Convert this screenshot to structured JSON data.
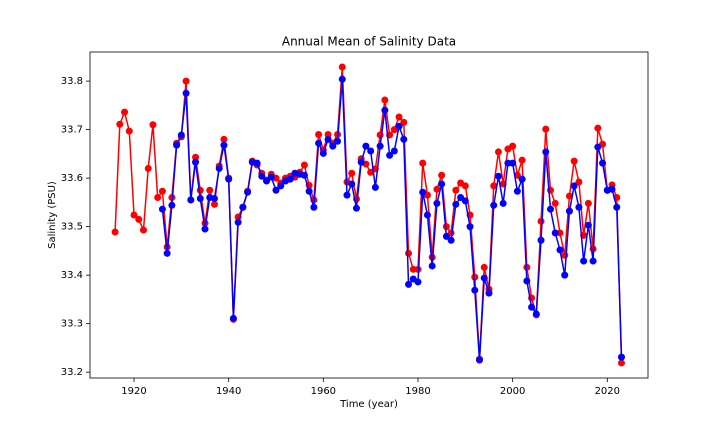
{
  "chart_data": {
    "type": "line",
    "title": "Annual Mean of Salinity Data",
    "x_label": "Time (year)",
    "y_label": "Salinity (PSU)",
    "x": [
      1916,
      1917,
      1918,
      1919,
      1920,
      1921,
      1922,
      1923,
      1924,
      1925,
      1926,
      1927,
      1928,
      1929,
      1930,
      1931,
      1932,
      1933,
      1934,
      1935,
      1936,
      1937,
      1938,
      1939,
      1940,
      1941,
      1942,
      1943,
      1944,
      1945,
      1946,
      1947,
      1948,
      1949,
      1950,
      1951,
      1952,
      1953,
      1954,
      1955,
      1956,
      1957,
      1958,
      1959,
      1960,
      1961,
      1962,
      1963,
      1964,
      1965,
      1966,
      1967,
      1968,
      1969,
      1970,
      1971,
      1972,
      1973,
      1974,
      1975,
      1976,
      1977,
      1978,
      1979,
      1980,
      1981,
      1982,
      1983,
      1984,
      1985,
      1986,
      1987,
      1988,
      1989,
      1990,
      1991,
      1992,
      1993,
      1994,
      1995,
      1996,
      1997,
      1998,
      1999,
      2000,
      2001,
      2002,
      2003,
      2004,
      2005,
      2006,
      2007,
      2008,
      2009,
      2010,
      2011,
      2012,
      2013,
      2014,
      2015,
      2016,
      2017,
      2018,
      2019,
      2020,
      2021,
      2022,
      2023
    ],
    "series": [
      {
        "color": "red",
        "values": [
          33.489,
          33.711,
          33.736,
          33.697,
          33.524,
          33.515,
          33.493,
          33.62,
          33.71,
          33.56,
          33.573,
          33.458,
          33.56,
          33.672,
          33.685,
          33.8,
          33.555,
          33.643,
          33.575,
          33.507,
          33.575,
          33.546,
          33.625,
          33.68,
          33.6,
          33.309,
          33.52,
          33.54,
          33.573,
          33.635,
          33.627,
          33.61,
          33.596,
          33.608,
          33.6,
          33.59,
          33.6,
          33.604,
          33.602,
          33.612,
          33.627,
          33.585,
          33.555,
          33.69,
          33.658,
          33.69,
          33.672,
          33.69,
          33.829,
          33.592,
          33.61,
          33.557,
          33.64,
          33.629,
          33.612,
          33.619,
          33.689,
          33.761,
          33.689,
          33.7,
          33.726,
          33.715,
          33.445,
          33.412,
          33.412,
          33.631,
          33.565,
          33.437,
          33.577,
          33.606,
          33.5,
          33.487,
          33.575,
          33.59,
          33.584,
          33.524,
          33.396,
          33.227,
          33.416,
          33.371,
          33.584,
          33.654,
          33.588,
          33.66,
          33.666,
          33.606,
          33.637,
          33.416,
          33.353,
          33.318,
          33.511,
          33.701,
          33.575,
          33.548,
          33.487,
          33.441,
          33.563,
          33.635,
          33.592,
          33.482,
          33.548,
          33.454,
          33.703,
          33.67,
          33.575,
          33.586,
          33.56,
          33.219
        ]
      },
      {
        "color": "blue",
        "values": [
          null,
          null,
          null,
          null,
          null,
          null,
          null,
          null,
          null,
          null,
          33.536,
          33.445,
          33.544,
          33.668,
          33.689,
          33.775,
          33.555,
          33.633,
          33.558,
          33.495,
          33.56,
          33.558,
          33.62,
          33.668,
          33.598,
          33.311,
          33.509,
          33.54,
          33.571,
          33.633,
          33.631,
          33.604,
          33.594,
          33.602,
          33.575,
          33.584,
          33.594,
          33.598,
          33.61,
          33.608,
          33.606,
          33.573,
          33.54,
          33.672,
          33.651,
          33.68,
          33.666,
          33.676,
          33.804,
          33.565,
          33.588,
          33.538,
          33.633,
          33.666,
          33.656,
          33.581,
          33.666,
          33.74,
          33.647,
          33.656,
          33.707,
          33.68,
          33.381,
          33.392,
          33.386,
          33.571,
          33.524,
          33.419,
          33.548,
          33.588,
          33.48,
          33.472,
          33.546,
          33.56,
          33.553,
          33.5,
          33.369,
          33.225,
          33.394,
          33.363,
          33.544,
          33.604,
          33.548,
          33.631,
          33.631,
          33.573,
          33.598,
          33.388,
          33.334,
          33.32,
          33.472,
          33.654,
          33.536,
          33.487,
          33.452,
          33.4,
          33.532,
          33.584,
          33.54,
          33.429,
          33.503,
          33.429,
          33.664,
          33.631,
          33.575,
          33.577,
          33.54,
          33.231
        ]
      }
    ],
    "xlim": [
      1910.7,
      2028.6
    ],
    "ylim": [
      33.188,
      33.86
    ],
    "xticks": [
      1920,
      1940,
      1960,
      1980,
      2000,
      2020
    ],
    "yticks": [
      33.2,
      33.3,
      33.4,
      33.5,
      33.6,
      33.7,
      33.8
    ]
  }
}
